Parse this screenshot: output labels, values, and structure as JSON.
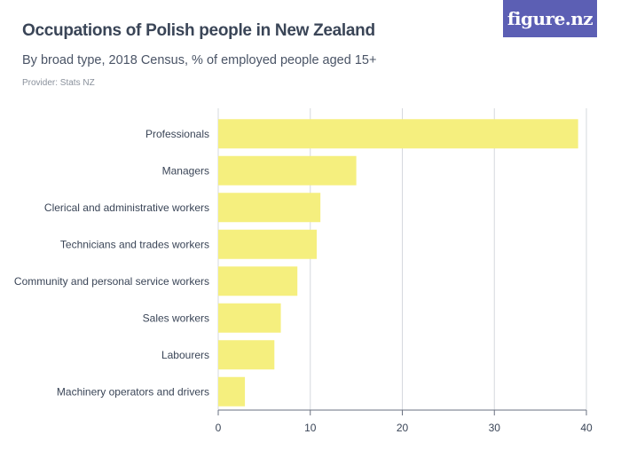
{
  "header": {
    "title": "Occupations of Polish people in New Zealand",
    "subtitle": "By broad type, 2018 Census, % of employed people aged 15+",
    "provider": "Provider: Stats NZ",
    "logo_text": "figure.nz"
  },
  "colors": {
    "bar": "#f5ef7e",
    "grid": "#d5d8de",
    "axis": "#6a7180",
    "logo_bg": "#5c5fb4"
  },
  "chart_data": {
    "type": "bar",
    "orientation": "horizontal",
    "title": "Occupations of Polish people in New Zealand",
    "subtitle": "By broad type, 2018 Census, % of employed people aged 15+",
    "categories": [
      "Professionals",
      "Managers",
      "Clerical and administrative workers",
      "Technicians and trades workers",
      "Community and personal service workers",
      "Sales workers",
      "Labourers",
      "Machinery operators and drivers"
    ],
    "values": [
      39.1,
      15.0,
      11.1,
      10.7,
      8.6,
      6.8,
      6.1,
      2.9
    ],
    "xlim": [
      0,
      40
    ],
    "xticks": [
      0,
      10,
      20,
      30,
      40
    ],
    "xlabel": "",
    "ylabel": "",
    "grid": true
  }
}
